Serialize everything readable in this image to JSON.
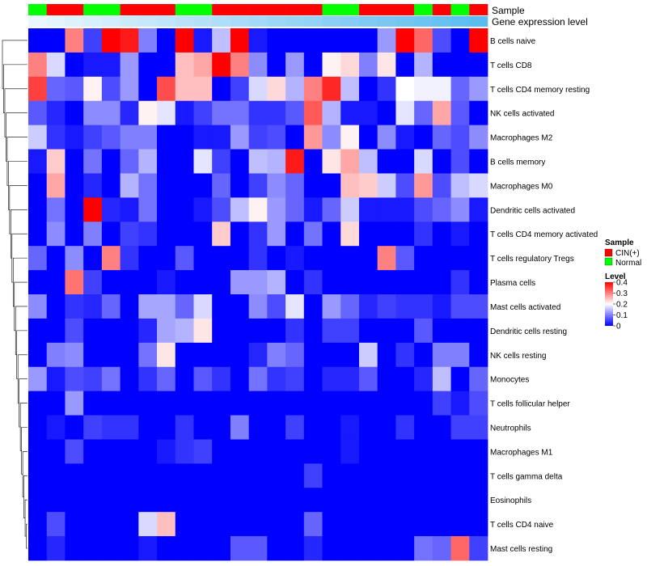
{
  "chart_data": {
    "type": "heatmap",
    "title": "",
    "annotation_tracks": {
      "sample": {
        "label": "Sample",
        "values": [
          "Normal",
          "CIN(+)",
          "CIN(+)",
          "Normal",
          "Normal",
          "CIN(+)",
          "CIN(+)",
          "CIN(+)",
          "Normal",
          "Normal",
          "CIN(+)",
          "CIN(+)",
          "CIN(+)",
          "CIN(+)",
          "CIN(+)",
          "CIN(+)",
          "Normal",
          "Normal",
          "CIN(+)",
          "CIN(+)",
          "CIN(+)",
          "Normal",
          "CIN(+)",
          "Normal",
          "CIN(+)"
        ]
      },
      "gene_expression": {
        "label": "Gene expression level",
        "level_fraction": [
          0.01,
          0.02,
          0.03,
          0.04,
          0.05,
          0.06,
          0.07,
          0.08,
          0.09,
          0.1,
          0.11,
          0.12,
          0.13,
          0.14,
          0.15,
          0.16,
          0.17,
          0.18,
          0.19,
          0.2,
          0.21,
          0.22,
          0.23,
          0.24,
          0.25
        ]
      }
    },
    "rows": [
      "B cells naive",
      "T cells CD8",
      "T cells CD4 memory resting",
      "NK cells activated",
      "Macrophages M2",
      "B cells memory",
      "Macrophages M0",
      "Dendritic cells activated",
      "T cells CD4 memory activated",
      "T cells regulatory  Tregs",
      "Plasma cells",
      "Mast cells activated",
      "Dendritic cells resting",
      "NK cells resting",
      "Monocytes",
      "T cells follicular helper",
      "Neutrophils",
      "Macrophages M1",
      "T cells gamma delta",
      "Eosinophils",
      "T cells CD4 naive",
      "Mast cells resting"
    ],
    "values": [
      [
        0.0,
        0.0,
        0.3,
        0.05,
        0.4,
        0.38,
        0.1,
        0.0,
        0.4,
        0.02,
        0.15,
        0.4,
        0.02,
        0.0,
        0.0,
        0.0,
        0.0,
        0.0,
        0.0,
        0.12,
        0.4,
        0.32,
        0.06,
        0.0,
        0.4
      ],
      [
        0.3,
        0.17,
        0.0,
        0.02,
        0.02,
        0.12,
        0.0,
        0.0,
        0.25,
        0.27,
        0.4,
        0.3,
        0.11,
        0.0,
        0.12,
        0.0,
        0.21,
        0.23,
        0.1,
        0.22,
        0.0,
        0.14,
        0.0,
        0.0,
        0.0
      ],
      [
        0.35,
        0.08,
        0.07,
        0.21,
        0.06,
        0.12,
        0.0,
        0.34,
        0.25,
        0.25,
        0.0,
        0.05,
        0.17,
        0.23,
        0.14,
        0.3,
        0.37,
        0.15,
        0.0,
        0.04,
        0.2,
        0.19,
        0.19,
        0.08,
        0.12
      ],
      [
        0.07,
        0.03,
        0.0,
        0.11,
        0.11,
        0.03,
        0.21,
        0.18,
        0.02,
        0.05,
        0.09,
        0.09,
        0.04,
        0.04,
        0.07,
        0.33,
        0.14,
        0.02,
        0.02,
        0.0,
        0.18,
        0.08,
        0.27,
        0.07,
        0.0
      ],
      [
        0.16,
        0.04,
        0.02,
        0.05,
        0.07,
        0.1,
        0.1,
        0.0,
        0.0,
        0.02,
        0.02,
        0.12,
        0.05,
        0.06,
        0.0,
        0.28,
        0.11,
        0.21,
        0.0,
        0.11,
        0.02,
        0.0,
        0.08,
        0.06,
        0.11
      ],
      [
        0.02,
        0.24,
        0.0,
        0.09,
        0.0,
        0.08,
        0.14,
        0.0,
        0.0,
        0.18,
        0.05,
        0.0,
        0.15,
        0.14,
        0.38,
        0.0,
        0.22,
        0.27,
        0.15,
        0.0,
        0.0,
        0.17,
        0.0,
        0.06,
        0.0
      ],
      [
        0.0,
        0.27,
        0.0,
        0.03,
        0.0,
        0.14,
        0.09,
        0.0,
        0.0,
        0.0,
        0.08,
        0.0,
        0.05,
        0.11,
        0.08,
        0.0,
        0.0,
        0.25,
        0.24,
        0.16,
        0.06,
        0.28,
        0.06,
        0.15,
        0.17
      ],
      [
        0.0,
        0.09,
        0.0,
        0.4,
        0.03,
        0.02,
        0.09,
        0.0,
        0.0,
        0.02,
        0.06,
        0.15,
        0.21,
        0.12,
        0.08,
        0.02,
        0.08,
        0.16,
        0.02,
        0.02,
        0.02,
        0.06,
        0.08,
        0.11,
        0.02
      ],
      [
        0.0,
        0.11,
        0.0,
        0.1,
        0.0,
        0.05,
        0.04,
        0.0,
        0.0,
        0.0,
        0.24,
        0.0,
        0.04,
        0.12,
        0.0,
        0.09,
        0.0,
        0.23,
        0.0,
        0.0,
        0.0,
        0.04,
        0.0,
        0.02,
        0.0
      ],
      [
        0.08,
        0.0,
        0.11,
        0.0,
        0.3,
        0.04,
        0.0,
        0.0,
        0.07,
        0.0,
        0.0,
        0.0,
        0.04,
        0.0,
        0.02,
        0.0,
        0.0,
        0.0,
        0.0,
        0.3,
        0.07,
        0.0,
        0.0,
        0.0,
        0.0
      ],
      [
        0.0,
        0.0,
        0.31,
        0.05,
        0.0,
        0.0,
        0.0,
        0.02,
        0.0,
        0.0,
        0.0,
        0.12,
        0.12,
        0.14,
        0.0,
        0.04,
        0.0,
        0.0,
        0.0,
        0.0,
        0.0,
        0.0,
        0.0,
        0.04,
        0.0
      ],
      [
        0.11,
        0.0,
        0.04,
        0.03,
        0.08,
        0.0,
        0.13,
        0.13,
        0.08,
        0.17,
        0.0,
        0.0,
        0.11,
        0.06,
        0.18,
        0.0,
        0.12,
        0.08,
        0.03,
        0.05,
        0.04,
        0.04,
        0.02,
        0.06,
        0.06
      ],
      [
        0.0,
        0.0,
        0.06,
        0.0,
        0.0,
        0.0,
        0.03,
        0.13,
        0.14,
        0.22,
        0.0,
        0.0,
        0.0,
        0.0,
        0.04,
        0.0,
        0.05,
        0.05,
        0.0,
        0.0,
        0.0,
        0.07,
        0.0,
        0.0,
        0.0
      ],
      [
        0.0,
        0.1,
        0.11,
        0.0,
        0.0,
        0.0,
        0.09,
        0.22,
        0.0,
        0.0,
        0.0,
        0.0,
        0.03,
        0.1,
        0.08,
        0.0,
        0.0,
        0.0,
        0.16,
        0.0,
        0.04,
        0.0,
        0.1,
        0.1,
        0.0
      ],
      [
        0.12,
        0.02,
        0.06,
        0.05,
        0.09,
        0.0,
        0.04,
        0.08,
        0.0,
        0.07,
        0.04,
        0.0,
        0.09,
        0.04,
        0.05,
        0.0,
        0.03,
        0.03,
        0.07,
        0.0,
        0.0,
        0.03,
        0.15,
        0.0,
        0.08
      ],
      [
        0.0,
        0.0,
        0.12,
        0.0,
        0.0,
        0.0,
        0.0,
        0.0,
        0.0,
        0.0,
        0.0,
        0.0,
        0.0,
        0.0,
        0.0,
        0.0,
        0.0,
        0.0,
        0.0,
        0.0,
        0.0,
        0.0,
        0.05,
        0.02,
        0.06
      ],
      [
        0.0,
        0.02,
        0.0,
        0.05,
        0.04,
        0.04,
        0.0,
        0.0,
        0.04,
        0.0,
        0.0,
        0.1,
        0.0,
        0.0,
        0.05,
        0.0,
        0.0,
        0.02,
        0.0,
        0.0,
        0.04,
        0.0,
        0.0,
        0.05,
        0.05
      ],
      [
        0.0,
        0.0,
        0.06,
        0.0,
        0.0,
        0.0,
        0.0,
        0.02,
        0.04,
        0.05,
        0.0,
        0.0,
        0.0,
        0.0,
        0.0,
        0.0,
        0.0,
        0.02,
        0.0,
        0.0,
        0.0,
        0.0,
        0.0,
        0.0,
        0.0
      ],
      [
        0.0,
        0.0,
        0.0,
        0.0,
        0.0,
        0.0,
        0.0,
        0.0,
        0.0,
        0.0,
        0.0,
        0.0,
        0.0,
        0.0,
        0.0,
        0.05,
        0.0,
        0.0,
        0.0,
        0.0,
        0.0,
        0.0,
        0.0,
        0.0,
        0.0
      ],
      [
        0.0,
        0.0,
        0.0,
        0.0,
        0.0,
        0.0,
        0.0,
        0.0,
        0.0,
        0.0,
        0.0,
        0.0,
        0.0,
        0.0,
        0.0,
        0.0,
        0.0,
        0.0,
        0.0,
        0.0,
        0.0,
        0.0,
        0.0,
        0.0,
        0.0
      ],
      [
        0.0,
        0.06,
        0.0,
        0.0,
        0.0,
        0.0,
        0.17,
        0.25,
        0.0,
        0.0,
        0.0,
        0.0,
        0.0,
        0.0,
        0.0,
        0.08,
        0.0,
        0.0,
        0.0,
        0.0,
        0.0,
        0.0,
        0.0,
        0.0,
        0.0
      ],
      [
        0.0,
        0.03,
        0.0,
        0.0,
        0.0,
        0.0,
        0.02,
        0.0,
        0.0,
        0.0,
        0.0,
        0.07,
        0.07,
        0.0,
        0.0,
        0.03,
        0.0,
        0.0,
        0.0,
        0.0,
        0.0,
        0.09,
        0.08,
        0.32,
        0.05
      ]
    ],
    "legend": {
      "sample_title": "Sample",
      "sample_items": [
        {
          "label": "CIN(+)",
          "color": "#ff0000"
        },
        {
          "label": "Normal",
          "color": "#00ff00"
        }
      ],
      "level_title": "Level",
      "level_ticks": [
        "0.4",
        "0.3",
        "0.2",
        "0.1",
        "0"
      ],
      "level_tick_values": [
        0.4,
        0.3,
        0.2,
        0.1,
        0
      ],
      "placement": "right"
    },
    "color_scale": {
      "min": 0,
      "mid": 0.2,
      "max": 0.4,
      "low_color": "#0000ff",
      "mid_color": "#ffffff",
      "high_color": "#ff0000"
    },
    "annotation_colors": {
      "CIN(+)": "#ff0000",
      "Normal": "#00ff00",
      "expr_low": "#eaf7fd",
      "expr_high": "#5bbcf0"
    },
    "row_dendrogram": true,
    "column_dendrogram": false
  }
}
